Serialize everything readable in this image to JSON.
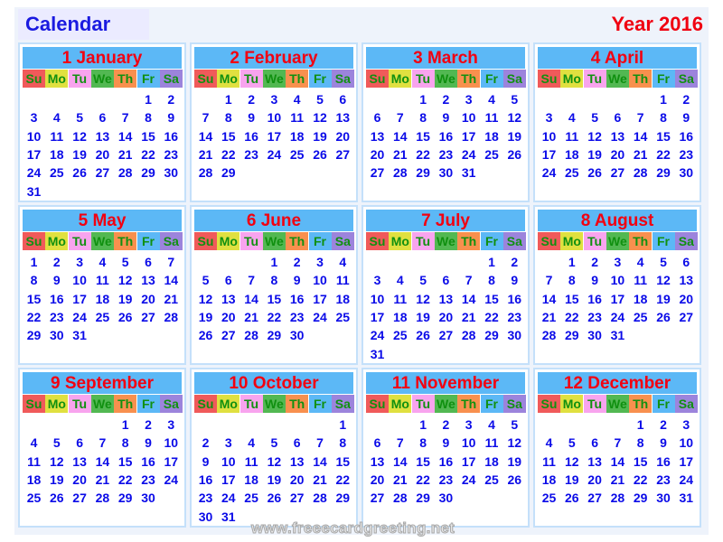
{
  "header": {
    "title": "Calendar",
    "year_label": "Year 2016"
  },
  "weekdays": [
    "Su",
    "Mo",
    "Tu",
    "We",
    "Th",
    "Fr",
    "Sa"
  ],
  "weekday_colors": [
    "#f05a5a",
    "#e0e040",
    "#f8a4ee",
    "#52b852",
    "#f8904e",
    "#5cb8f6",
    "#9c84dc"
  ],
  "months": [
    {
      "label": "1 January",
      "lead_blanks": 5,
      "days": 31
    },
    {
      "label": "2 February",
      "lead_blanks": 1,
      "days": 29
    },
    {
      "label": "3 March",
      "lead_blanks": 2,
      "days": 31
    },
    {
      "label": "4 April",
      "lead_blanks": 5,
      "days": 30
    },
    {
      "label": "5 May",
      "lead_blanks": 0,
      "days": 31
    },
    {
      "label": "6 June",
      "lead_blanks": 3,
      "days": 30
    },
    {
      "label": "7 July",
      "lead_blanks": 5,
      "days": 31
    },
    {
      "label": "8 August",
      "lead_blanks": 1,
      "days": 31
    },
    {
      "label": "9 September",
      "lead_blanks": 4,
      "days": 30
    },
    {
      "label": "10 October",
      "lead_blanks": 6,
      "days": 31
    },
    {
      "label": "11 November",
      "lead_blanks": 2,
      "days": 30
    },
    {
      "label": "12 December",
      "lead_blanks": 4,
      "days": 31
    }
  ],
  "watermark": "www.freeecardgreeting.net"
}
